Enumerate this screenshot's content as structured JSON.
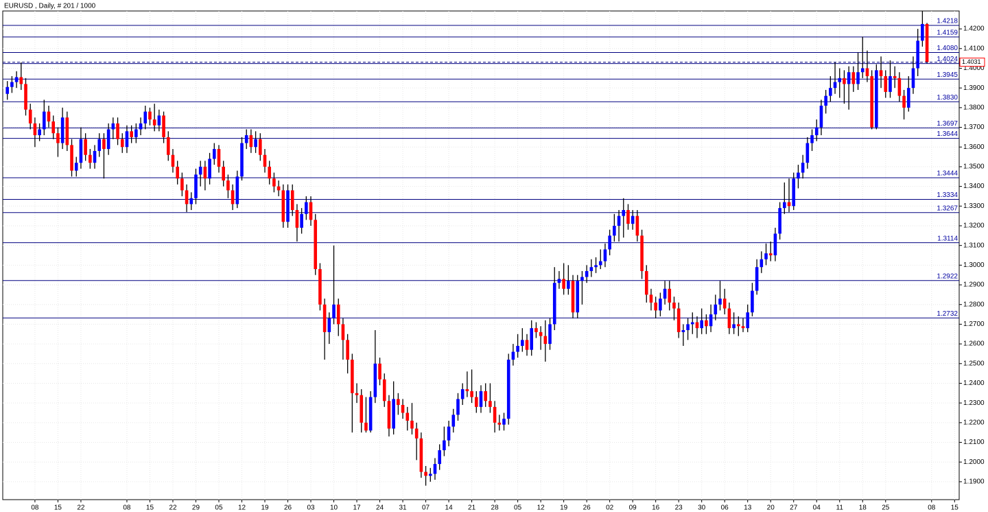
{
  "chart_data": {
    "type": "candlestick",
    "title": "EURUSD , Daily, # 201 / 1000",
    "up_color": "#0000ff",
    "down_color": "#ff0000",
    "level_color": "#000080",
    "grid": true,
    "xlim": [
      -1,
      207
    ],
    "ylim": [
      1.1809,
      1.4291
    ],
    "yticks": [
      {
        "value": 1.19,
        "label": "1.1900"
      },
      {
        "value": 1.2,
        "label": "1.2000"
      },
      {
        "value": 1.21,
        "label": "1.2100"
      },
      {
        "value": 1.22,
        "label": "1.2200"
      },
      {
        "value": 1.23,
        "label": "1.2300"
      },
      {
        "value": 1.24,
        "label": "1.2400"
      },
      {
        "value": 1.25,
        "label": "1.2500"
      },
      {
        "value": 1.26,
        "label": "1.2600"
      },
      {
        "value": 1.27,
        "label": "1.2700"
      },
      {
        "value": 1.28,
        "label": "1.2800"
      },
      {
        "value": 1.29,
        "label": "1.2900"
      },
      {
        "value": 1.3,
        "label": "1.3000"
      },
      {
        "value": 1.31,
        "label": "1.3100"
      },
      {
        "value": 1.32,
        "label": "1.3200"
      },
      {
        "value": 1.33,
        "label": "1.3300"
      },
      {
        "value": 1.34,
        "label": "1.3400"
      },
      {
        "value": 1.35,
        "label": "1.3500"
      },
      {
        "value": 1.36,
        "label": "1.3600"
      },
      {
        "value": 1.37,
        "label": "1.3700"
      },
      {
        "value": 1.38,
        "label": "1.3800"
      },
      {
        "value": 1.39,
        "label": "1.3900"
      },
      {
        "value": 1.4,
        "label": "1.4000"
      },
      {
        "value": 1.41,
        "label": "1.4100"
      },
      {
        "value": 1.42,
        "label": "1.4200"
      }
    ],
    "xticks": [
      {
        "value": 6,
        "label": "08"
      },
      {
        "value": 11,
        "label": "15"
      },
      {
        "value": 16,
        "label": "22"
      },
      {
        "value": 26,
        "label": "08"
      },
      {
        "value": 31,
        "label": "15"
      },
      {
        "value": 36,
        "label": "22"
      },
      {
        "value": 41,
        "label": "29"
      },
      {
        "value": 46,
        "label": "05"
      },
      {
        "value": 51,
        "label": "12"
      },
      {
        "value": 56,
        "label": "19"
      },
      {
        "value": 61,
        "label": "26"
      },
      {
        "value": 66,
        "label": "03"
      },
      {
        "value": 71,
        "label": "10"
      },
      {
        "value": 76,
        "label": "17"
      },
      {
        "value": 81,
        "label": "24"
      },
      {
        "value": 86,
        "label": "31"
      },
      {
        "value": 91,
        "label": "07"
      },
      {
        "value": 96,
        "label": "14"
      },
      {
        "value": 101,
        "label": "21"
      },
      {
        "value": 106,
        "label": "28"
      },
      {
        "value": 111,
        "label": "05"
      },
      {
        "value": 116,
        "label": "12"
      },
      {
        "value": 121,
        "label": "19"
      },
      {
        "value": 126,
        "label": "26"
      },
      {
        "value": 131,
        "label": "02"
      },
      {
        "value": 136,
        "label": "09"
      },
      {
        "value": 141,
        "label": "16"
      },
      {
        "value": 146,
        "label": "23"
      },
      {
        "value": 151,
        "label": "30"
      },
      {
        "value": 156,
        "label": "06"
      },
      {
        "value": 161,
        "label": "13"
      },
      {
        "value": 166,
        "label": "20"
      },
      {
        "value": 171,
        "label": "27"
      },
      {
        "value": 176,
        "label": "04"
      },
      {
        "value": 181,
        "label": "11"
      },
      {
        "value": 186,
        "label": "18"
      },
      {
        "value": 191,
        "label": "25"
      },
      {
        "value": 201,
        "label": "08"
      },
      {
        "value": 206,
        "label": "15"
      }
    ],
    "levels": [
      1.4218,
      1.4159,
      {
        "value": 1.408,
        "label": "1.4080"
      },
      1.4024,
      1.3945,
      {
        "value": 1.383,
        "label": "1.3830"
      },
      1.3697,
      1.3644,
      1.3444,
      1.3334,
      1.3267,
      1.3114,
      1.2922,
      1.2732
    ],
    "open": [
      1.387,
      1.3905,
      1.393,
      1.3955,
      1.392,
      1.379,
      1.372,
      1.366,
      1.369,
      1.378,
      1.373,
      1.367,
      1.362,
      1.375,
      1.361,
      1.348,
      1.352,
      1.364,
      1.356,
      1.352,
      1.358,
      1.364,
      1.359,
      1.369,
      1.372,
      1.364,
      1.36,
      1.368,
      1.365,
      1.369,
      1.372,
      1.378,
      1.374,
      1.371,
      1.376,
      1.365,
      1.356,
      1.35,
      1.344,
      1.338,
      1.331,
      1.334,
      1.346,
      1.35,
      1.344,
      1.354,
      1.359,
      1.35,
      1.343,
      1.338,
      1.331,
      1.345,
      1.362,
      1.366,
      1.36,
      1.364,
      1.356,
      1.35,
      1.344,
      1.34,
      1.338,
      1.322,
      1.338,
      1.328,
      1.319,
      1.326,
      1.332,
      1.323,
      1.298,
      1.28,
      1.266,
      1.273,
      1.28,
      1.27,
      1.262,
      1.252,
      1.235,
      1.234,
      1.22,
      1.216,
      1.233,
      1.25,
      1.242,
      1.231,
      1.217,
      1.232,
      1.229,
      1.225,
      1.221,
      1.217,
      1.212,
      1.195,
      1.193,
      1.194,
      1.199,
      1.206,
      1.211,
      1.218,
      1.224,
      1.232,
      1.237,
      1.236,
      1.233,
      1.228,
      1.236,
      1.231,
      1.228,
      1.22,
      1.219,
      1.222,
      1.252,
      1.256,
      1.259,
      1.262,
      1.257,
      1.268,
      1.266,
      1.264,
      1.26,
      1.27,
      1.291,
      1.293,
      1.288,
      1.292,
      1.276,
      1.292,
      1.294,
      1.297,
      1.299,
      1.3,
      1.302,
      1.308,
      1.315,
      1.32,
      1.325,
      1.328,
      1.321,
      1.325,
      1.315,
      1.297,
      1.285,
      1.281,
      1.277,
      1.283,
      1.288,
      1.281,
      1.278,
      1.266,
      1.267,
      1.27,
      1.271,
      1.268,
      1.272,
      1.269,
      1.275,
      1.28,
      1.283,
      1.278,
      1.268,
      1.27,
      1.269,
      1.268,
      1.276,
      1.287,
      1.299,
      1.303,
      1.306,
      1.305,
      1.316,
      1.329,
      1.332,
      1.33,
      1.344,
      1.347,
      1.352,
      1.362,
      1.366,
      1.37,
      1.381,
      1.386,
      1.39,
      1.393,
      1.395,
      1.392,
      1.398,
      1.392,
      1.398,
      1.4,
      1.396,
      1.37,
      1.399,
      1.396,
      1.388,
      1.396,
      1.395,
      1.386,
      1.38,
      1.39,
      1.4,
      1.414,
      1.4225
    ],
    "high": [
      1.3935,
      1.396,
      1.3985,
      1.403,
      1.395,
      1.382,
      1.375,
      1.372,
      1.384,
      1.381,
      1.376,
      1.37,
      1.38,
      1.378,
      1.364,
      1.355,
      1.37,
      1.367,
      1.359,
      1.361,
      1.367,
      1.367,
      1.372,
      1.375,
      1.375,
      1.367,
      1.371,
      1.371,
      1.372,
      1.375,
      1.381,
      1.38,
      1.382,
      1.379,
      1.378,
      1.368,
      1.359,
      1.353,
      1.347,
      1.341,
      1.337,
      1.349,
      1.353,
      1.353,
      1.357,
      1.362,
      1.361,
      1.353,
      1.346,
      1.341,
      1.348,
      1.365,
      1.369,
      1.369,
      1.368,
      1.367,
      1.359,
      1.353,
      1.347,
      1.343,
      1.341,
      1.341,
      1.341,
      1.331,
      1.329,
      1.335,
      1.335,
      1.326,
      1.301,
      1.283,
      1.276,
      1.31,
      1.283,
      1.273,
      1.265,
      1.255,
      1.24,
      1.237,
      1.233,
      1.236,
      1.267,
      1.253,
      1.245,
      1.234,
      1.241,
      1.235,
      1.232,
      1.228,
      1.23,
      1.22,
      1.215,
      1.198,
      1.197,
      1.202,
      1.209,
      1.218,
      1.221,
      1.227,
      1.235,
      1.24,
      1.246,
      1.247,
      1.236,
      1.239,
      1.24,
      1.24,
      1.231,
      1.224,
      1.225,
      1.255,
      1.26,
      1.265,
      1.268,
      1.265,
      1.272,
      1.271,
      1.269,
      1.272,
      1.273,
      1.299,
      1.297,
      1.301,
      1.3,
      1.295,
      1.295,
      1.297,
      1.3,
      1.303,
      1.304,
      1.308,
      1.311,
      1.318,
      1.326,
      1.328,
      1.334,
      1.331,
      1.328,
      1.328,
      1.318,
      1.3,
      1.288,
      1.284,
      1.286,
      1.292,
      1.292,
      1.284,
      1.281,
      1.27,
      1.273,
      1.276,
      1.274,
      1.278,
      1.275,
      1.28,
      1.285,
      1.292,
      1.288,
      1.281,
      1.276,
      1.274,
      1.273,
      1.28,
      1.291,
      1.303,
      1.307,
      1.311,
      1.312,
      1.319,
      1.332,
      1.342,
      1.344,
      1.347,
      1.351,
      1.356,
      1.365,
      1.369,
      1.374,
      1.384,
      1.389,
      1.396,
      1.403,
      1.4,
      1.399,
      1.401,
      1.401,
      1.408,
      1.416,
      1.409,
      1.399,
      1.402,
      1.406,
      1.399,
      1.404,
      1.401,
      1.398,
      1.389,
      1.396,
      1.406,
      1.42,
      1.429,
      1.423
    ],
    "low": [
      1.384,
      1.3875,
      1.39,
      1.389,
      1.376,
      1.369,
      1.36,
      1.363,
      1.366,
      1.37,
      1.364,
      1.355,
      1.359,
      1.358,
      1.345,
      1.345,
      1.349,
      1.353,
      1.349,
      1.349,
      1.355,
      1.344,
      1.356,
      1.364,
      1.361,
      1.357,
      1.357,
      1.362,
      1.362,
      1.366,
      1.369,
      1.371,
      1.368,
      1.368,
      1.362,
      1.353,
      1.347,
      1.341,
      1.335,
      1.327,
      1.328,
      1.331,
      1.34,
      1.338,
      1.341,
      1.351,
      1.347,
      1.34,
      1.334,
      1.328,
      1.329,
      1.343,
      1.359,
      1.357,
      1.357,
      1.353,
      1.347,
      1.341,
      1.337,
      1.335,
      1.319,
      1.319,
      1.325,
      1.312,
      1.316,
      1.323,
      1.32,
      1.295,
      1.277,
      1.252,
      1.26,
      1.27,
      1.264,
      1.252,
      1.245,
      1.215,
      1.23,
      1.215,
      1.215,
      1.215,
      1.23,
      1.239,
      1.228,
      1.213,
      1.214,
      1.224,
      1.222,
      1.216,
      1.214,
      1.201,
      1.192,
      1.188,
      1.19,
      1.191,
      1.196,
      1.203,
      1.208,
      1.215,
      1.221,
      1.229,
      1.233,
      1.23,
      1.225,
      1.225,
      1.228,
      1.225,
      1.215,
      1.216,
      1.216,
      1.219,
      1.249,
      1.253,
      1.256,
      1.254,
      1.254,
      1.263,
      1.257,
      1.251,
      1.257,
      1.267,
      1.288,
      1.285,
      1.285,
      1.273,
      1.273,
      1.28,
      1.291,
      1.294,
      1.296,
      1.298,
      1.299,
      1.305,
      1.312,
      1.312,
      1.314,
      1.318,
      1.318,
      1.312,
      1.293,
      1.281,
      1.277,
      1.273,
      1.274,
      1.28,
      1.277,
      1.272,
      1.263,
      1.259,
      1.262,
      1.265,
      1.263,
      1.265,
      1.265,
      1.266,
      1.272,
      1.277,
      1.275,
      1.265,
      1.265,
      1.264,
      1.266,
      1.266,
      1.274,
      1.285,
      1.296,
      1.3,
      1.302,
      1.302,
      1.313,
      1.326,
      1.327,
      1.328,
      1.339,
      1.344,
      1.349,
      1.358,
      1.363,
      1.366,
      1.377,
      1.383,
      1.387,
      1.385,
      1.382,
      1.379,
      1.388,
      1.389,
      1.395,
      1.393,
      1.369,
      1.369,
      1.39,
      1.385,
      1.385,
      1.39,
      1.383,
      1.374,
      1.378,
      1.387,
      1.396,
      1.411,
      1.4025
    ],
    "close": [
      1.3905,
      1.393,
      1.3955,
      1.392,
      1.379,
      1.372,
      1.366,
      1.369,
      1.378,
      1.373,
      1.367,
      1.362,
      1.375,
      1.361,
      1.348,
      1.352,
      1.364,
      1.356,
      1.352,
      1.358,
      1.364,
      1.359,
      1.369,
      1.372,
      1.364,
      1.36,
      1.368,
      1.365,
      1.369,
      1.372,
      1.378,
      1.374,
      1.371,
      1.376,
      1.365,
      1.356,
      1.35,
      1.344,
      1.338,
      1.331,
      1.334,
      1.346,
      1.35,
      1.344,
      1.354,
      1.359,
      1.35,
      1.343,
      1.338,
      1.331,
      1.345,
      1.362,
      1.366,
      1.36,
      1.364,
      1.356,
      1.35,
      1.344,
      1.34,
      1.338,
      1.322,
      1.338,
      1.328,
      1.319,
      1.326,
      1.332,
      1.323,
      1.298,
      1.28,
      1.266,
      1.273,
      1.28,
      1.27,
      1.262,
      1.252,
      1.235,
      1.234,
      1.22,
      1.216,
      1.233,
      1.25,
      1.242,
      1.231,
      1.217,
      1.232,
      1.229,
      1.225,
      1.221,
      1.217,
      1.212,
      1.195,
      1.193,
      1.194,
      1.199,
      1.206,
      1.211,
      1.218,
      1.224,
      1.232,
      1.237,
      1.236,
      1.233,
      1.228,
      1.236,
      1.231,
      1.228,
      1.22,
      1.219,
      1.222,
      1.252,
      1.256,
      1.259,
      1.262,
      1.257,
      1.268,
      1.266,
      1.264,
      1.26,
      1.27,
      1.291,
      1.293,
      1.288,
      1.292,
      1.276,
      1.292,
      1.294,
      1.297,
      1.299,
      1.3,
      1.302,
      1.308,
      1.315,
      1.32,
      1.325,
      1.328,
      1.321,
      1.325,
      1.315,
      1.297,
      1.285,
      1.281,
      1.277,
      1.283,
      1.288,
      1.281,
      1.278,
      1.266,
      1.267,
      1.27,
      1.271,
      1.268,
      1.272,
      1.269,
      1.275,
      1.28,
      1.283,
      1.278,
      1.268,
      1.27,
      1.269,
      1.268,
      1.276,
      1.287,
      1.299,
      1.303,
      1.306,
      1.305,
      1.316,
      1.329,
      1.332,
      1.33,
      1.344,
      1.347,
      1.352,
      1.362,
      1.366,
      1.37,
      1.381,
      1.386,
      1.39,
      1.393,
      1.395,
      1.392,
      1.398,
      1.392,
      1.398,
      1.4,
      1.396,
      1.37,
      1.399,
      1.396,
      1.388,
      1.396,
      1.395,
      1.386,
      1.38,
      1.39,
      1.4,
      1.414,
      1.4225,
      1.4031
    ]
  }
}
